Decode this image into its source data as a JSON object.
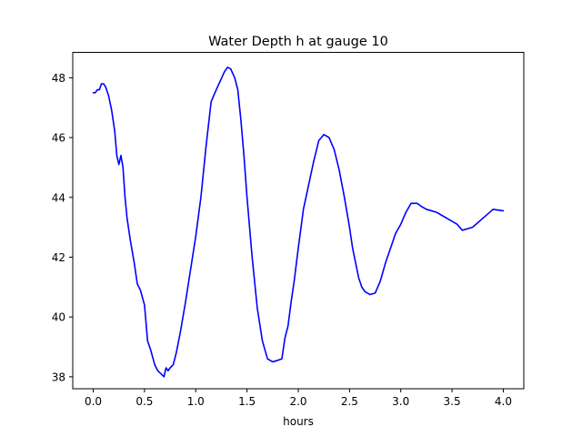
{
  "chart_data": {
    "type": "line",
    "title": "Water Depth h at gauge 10",
    "xlabel": "hours",
    "ylabel": "",
    "xlim": [
      -0.2,
      4.2
    ],
    "ylim": [
      37.6,
      48.85
    ],
    "xticks": [
      0.0,
      0.5,
      1.0,
      1.5,
      2.0,
      2.5,
      3.0,
      3.5,
      4.0
    ],
    "xtick_labels": [
      "0.0",
      "0.5",
      "1.0",
      "1.5",
      "2.0",
      "2.5",
      "3.0",
      "3.5",
      "4.0"
    ],
    "yticks": [
      38,
      40,
      42,
      44,
      46,
      48
    ],
    "ytick_labels": [
      "38",
      "40",
      "42",
      "44",
      "46",
      "48"
    ],
    "grid": false,
    "series": [
      {
        "color": "#0000ff",
        "x": [
          0.0,
          0.02,
          0.04,
          0.06,
          0.08,
          0.1,
          0.12,
          0.15,
          0.18,
          0.21,
          0.23,
          0.25,
          0.27,
          0.29,
          0.31,
          0.33,
          0.36,
          0.4,
          0.43,
          0.46,
          0.5,
          0.53,
          0.56,
          0.6,
          0.63,
          0.66,
          0.69,
          0.71,
          0.73,
          0.75,
          0.78,
          0.81,
          0.85,
          0.9,
          0.95,
          1.0,
          1.05,
          1.1,
          1.15,
          1.2,
          1.24,
          1.28,
          1.31,
          1.34,
          1.36,
          1.38,
          1.41,
          1.44,
          1.47,
          1.5,
          1.55,
          1.6,
          1.65,
          1.7,
          1.75,
          1.8,
          1.84,
          1.87,
          1.9,
          1.93,
          1.96,
          2.0,
          2.05,
          2.1,
          2.15,
          2.2,
          2.25,
          2.3,
          2.35,
          2.4,
          2.45,
          2.5,
          2.53,
          2.56,
          2.59,
          2.62,
          2.65,
          2.7,
          2.75,
          2.8,
          2.85,
          2.9,
          2.95,
          3.0,
          3.05,
          3.1,
          3.13,
          3.16,
          3.2,
          3.25,
          3.3,
          3.35,
          3.4,
          3.45,
          3.5,
          3.55,
          3.6,
          3.7,
          3.8,
          3.9,
          4.0
        ],
        "y": [
          47.5,
          47.5,
          47.6,
          47.6,
          47.8,
          47.8,
          47.7,
          47.4,
          46.9,
          46.2,
          45.4,
          45.1,
          45.4,
          45.0,
          44.0,
          43.3,
          42.6,
          41.8,
          41.1,
          40.9,
          40.4,
          39.2,
          38.9,
          38.4,
          38.2,
          38.1,
          38.0,
          38.3,
          38.2,
          38.3,
          38.4,
          38.8,
          39.5,
          40.5,
          41.6,
          42.7,
          44.0,
          45.7,
          47.2,
          47.6,
          47.9,
          48.2,
          48.35,
          48.3,
          48.15,
          48.0,
          47.6,
          46.6,
          45.4,
          44.0,
          42.0,
          40.3,
          39.2,
          38.6,
          38.5,
          38.55,
          38.6,
          39.3,
          39.7,
          40.5,
          41.2,
          42.3,
          43.6,
          44.4,
          45.2,
          45.9,
          46.1,
          46.0,
          45.6,
          44.9,
          44.0,
          43.0,
          42.3,
          41.8,
          41.3,
          41.0,
          40.85,
          40.75,
          40.8,
          41.2,
          41.8,
          42.3,
          42.8,
          43.1,
          43.5,
          43.8,
          43.8,
          43.8,
          43.7,
          43.6,
          43.55,
          43.5,
          43.4,
          43.3,
          43.2,
          43.1,
          42.9,
          43.0,
          43.3,
          43.6,
          43.55
        ]
      }
    ]
  }
}
